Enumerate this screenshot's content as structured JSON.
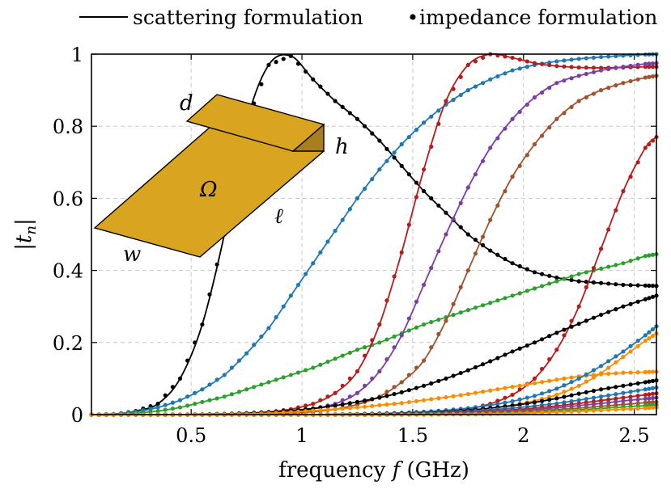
{
  "chart_data": {
    "type": "line",
    "title": "",
    "xlabel_parts": {
      "prefix": "frequency ",
      "var": "f",
      "suffix": " (GHz)"
    },
    "ylabel_parts": {
      "left": "|",
      "var": "t",
      "sub": "n",
      "right": "|"
    },
    "xlim": [
      0.05,
      2.6
    ],
    "ylim": [
      0,
      1
    ],
    "xticks": [
      0.5,
      1,
      1.5,
      2,
      2.5
    ],
    "xtick_labels": [
      "0.5",
      "1",
      "1.5",
      "2",
      "2.5"
    ],
    "yticks": [
      0,
      0.2,
      0.4,
      0.6,
      0.8,
      1
    ],
    "ytick_labels": [
      "0",
      "0.2",
      "0.4",
      "0.6",
      "0.8",
      "1"
    ],
    "grid": true,
    "legend": {
      "placement": "top",
      "entries": [
        {
          "label": "scattering formulation",
          "marker": "line"
        },
        {
          "label": "impedance formulation",
          "marker": "dot"
        }
      ]
    },
    "inset": {
      "labels": {
        "d": "d",
        "h": "h",
        "omega": "Ω",
        "ell": "ℓ",
        "w": "w"
      },
      "fill_color": "#D9A520",
      "side_color": "#A87E1E"
    },
    "x": [
      0.05,
      0.15,
      0.25,
      0.35,
      0.45,
      0.55,
      0.65,
      0.75,
      0.85,
      0.95,
      1.05,
      1.15,
      1.25,
      1.35,
      1.45,
      1.55,
      1.65,
      1.75,
      1.85,
      1.95,
      2.05,
      2.15,
      2.25,
      2.35,
      2.45,
      2.55,
      2.6
    ],
    "series": [
      {
        "color": "#000000",
        "values": [
          0.0,
          0.0,
          0.01,
          0.03,
          0.1,
          0.25,
          0.5,
          0.81,
          0.97,
          0.995,
          0.93,
          0.87,
          0.82,
          0.76,
          0.69,
          0.62,
          0.56,
          0.5,
          0.455,
          0.42,
          0.395,
          0.38,
          0.37,
          0.365,
          0.36,
          0.358,
          0.357
        ]
      },
      {
        "color": "#1F77B4",
        "values": [
          0.0,
          0.002,
          0.008,
          0.02,
          0.04,
          0.07,
          0.11,
          0.17,
          0.24,
          0.33,
          0.42,
          0.51,
          0.6,
          0.68,
          0.75,
          0.81,
          0.86,
          0.9,
          0.93,
          0.955,
          0.97,
          0.98,
          0.987,
          0.992,
          0.996,
          0.999,
          1.0
        ]
      },
      {
        "color": "#2CA02C",
        "values": [
          0.0,
          0.0,
          0.004,
          0.01,
          0.02,
          0.035,
          0.05,
          0.07,
          0.09,
          0.11,
          0.13,
          0.155,
          0.18,
          0.2,
          0.225,
          0.25,
          0.27,
          0.29,
          0.31,
          0.33,
          0.35,
          0.37,
          0.39,
          0.405,
          0.42,
          0.44,
          0.445
        ]
      },
      {
        "color": "#B71C1C",
        "values": [
          0.0,
          0.0,
          0.0,
          0.0,
          0.0,
          0.0,
          0.001,
          0.003,
          0.007,
          0.015,
          0.03,
          0.06,
          0.12,
          0.25,
          0.45,
          0.68,
          0.87,
          0.97,
          1.0,
          0.99,
          0.975,
          0.967,
          0.963,
          0.962,
          0.963,
          0.965,
          0.965
        ]
      },
      {
        "color": "#7B3FA0",
        "values": [
          0.0,
          0.0,
          0.0,
          0.0,
          0.0,
          0.0,
          0.001,
          0.002,
          0.004,
          0.008,
          0.016,
          0.03,
          0.06,
          0.12,
          0.22,
          0.36,
          0.5,
          0.63,
          0.74,
          0.82,
          0.88,
          0.92,
          0.94,
          0.955,
          0.965,
          0.973,
          0.975
        ]
      },
      {
        "color": "#A0522D",
        "values": [
          0.0,
          0.0,
          0.0,
          0.0,
          0.0,
          0.0,
          0.0,
          0.001,
          0.002,
          0.004,
          0.008,
          0.015,
          0.028,
          0.05,
          0.09,
          0.15,
          0.26,
          0.4,
          0.54,
          0.66,
          0.75,
          0.82,
          0.87,
          0.9,
          0.92,
          0.935,
          0.94
        ]
      },
      {
        "color": "#B71C1C",
        "values": [
          0.0,
          0.0,
          0.0,
          0.0,
          0.0,
          0.0,
          0.0,
          0.0,
          0.0,
          0.0,
          0.0,
          0.0,
          0.0,
          0.0,
          0.001,
          0.003,
          0.007,
          0.015,
          0.03,
          0.055,
          0.1,
          0.18,
          0.3,
          0.46,
          0.62,
          0.74,
          0.77
        ]
      },
      {
        "color": "#000000",
        "values": [
          0.0,
          0.0,
          0.0,
          0.0,
          0.0,
          0.001,
          0.002,
          0.004,
          0.007,
          0.011,
          0.017,
          0.025,
          0.035,
          0.047,
          0.062,
          0.08,
          0.1,
          0.123,
          0.148,
          0.175,
          0.2,
          0.227,
          0.252,
          0.277,
          0.3,
          0.32,
          0.33
        ]
      },
      {
        "color": "#FF8C00",
        "values": [
          0.0,
          0.0,
          0.0,
          0.0,
          0.0,
          0.0,
          0.001,
          0.002,
          0.004,
          0.007,
          0.011,
          0.015,
          0.02,
          0.026,
          0.032,
          0.04,
          0.048,
          0.057,
          0.067,
          0.077,
          0.087,
          0.097,
          0.106,
          0.112,
          0.116,
          0.118,
          0.119
        ]
      },
      {
        "color": "#1F77B4",
        "values": [
          0.0,
          0.0,
          0.0,
          0.0,
          0.0,
          0.0,
          0.0,
          0.0,
          0.0,
          0.0,
          0.0,
          0.001,
          0.002,
          0.003,
          0.005,
          0.008,
          0.012,
          0.018,
          0.026,
          0.037,
          0.052,
          0.072,
          0.1,
          0.135,
          0.175,
          0.22,
          0.245
        ]
      },
      {
        "color": "#FF8C00",
        "values": [
          0.0,
          0.0,
          0.0,
          0.0,
          0.0,
          0.0,
          0.0,
          0.0,
          0.0,
          0.0,
          0.0,
          0.0,
          0.001,
          0.002,
          0.003,
          0.005,
          0.008,
          0.012,
          0.018,
          0.026,
          0.038,
          0.055,
          0.08,
          0.115,
          0.16,
          0.205,
          0.225
        ]
      },
      {
        "color": "#000000",
        "values": [
          0.0,
          0.0,
          0.0,
          0.0,
          0.0,
          0.0,
          0.0,
          0.0,
          0.0,
          0.0,
          0.0,
          0.0,
          0.001,
          0.002,
          0.003,
          0.005,
          0.008,
          0.012,
          0.018,
          0.025,
          0.034,
          0.045,
          0.058,
          0.07,
          0.08,
          0.09,
          0.095
        ]
      },
      {
        "color": "#1F77B4",
        "values": [
          0.0,
          0.0,
          0.0,
          0.0,
          0.0,
          0.0,
          0.0,
          0.0,
          0.0,
          0.0,
          0.0,
          0.0,
          0.0,
          0.001,
          0.002,
          0.004,
          0.006,
          0.009,
          0.013,
          0.018,
          0.024,
          0.031,
          0.04,
          0.05,
          0.06,
          0.07,
          0.075
        ]
      },
      {
        "color": "#B71C1C",
        "values": [
          0.0,
          0.0,
          0.0,
          0.0,
          0.0,
          0.0,
          0.0,
          0.0,
          0.0,
          0.0,
          0.0,
          0.0,
          0.0,
          0.0,
          0.001,
          0.002,
          0.004,
          0.006,
          0.009,
          0.013,
          0.018,
          0.024,
          0.031,
          0.039,
          0.047,
          0.055,
          0.059
        ]
      },
      {
        "color": "#7B3FA0",
        "values": [
          0.0,
          0.0,
          0.0,
          0.0,
          0.0,
          0.0,
          0.0,
          0.0,
          0.0,
          0.0,
          0.0,
          0.0,
          0.0,
          0.0,
          0.001,
          0.002,
          0.003,
          0.005,
          0.007,
          0.01,
          0.014,
          0.019,
          0.025,
          0.031,
          0.038,
          0.044,
          0.047
        ]
      },
      {
        "color": "#A0522D",
        "values": [
          0.0,
          0.0,
          0.0,
          0.0,
          0.0,
          0.0,
          0.0,
          0.0,
          0.0,
          0.0,
          0.0,
          0.0,
          0.0,
          0.0,
          0.0,
          0.001,
          0.002,
          0.003,
          0.005,
          0.007,
          0.01,
          0.014,
          0.018,
          0.023,
          0.028,
          0.033,
          0.035
        ]
      },
      {
        "color": "#2CA02C",
        "values": [
          0.0,
          0.0,
          0.0,
          0.0,
          0.0,
          0.0,
          0.0,
          0.0,
          0.0,
          0.0,
          0.0,
          0.0,
          0.0,
          0.0,
          0.0,
          0.001,
          0.001,
          0.002,
          0.003,
          0.005,
          0.007,
          0.01,
          0.013,
          0.017,
          0.021,
          0.025,
          0.027
        ]
      },
      {
        "color": "#FF8C00",
        "values": [
          0.0,
          0.0,
          0.0,
          0.0,
          0.0,
          0.0,
          0.0,
          0.0,
          0.0,
          0.0,
          0.0,
          0.0,
          0.0,
          0.0,
          0.0,
          0.0,
          0.001,
          0.001,
          0.002,
          0.003,
          0.005,
          0.007,
          0.009,
          0.012,
          0.015,
          0.018,
          0.02
        ]
      }
    ]
  }
}
